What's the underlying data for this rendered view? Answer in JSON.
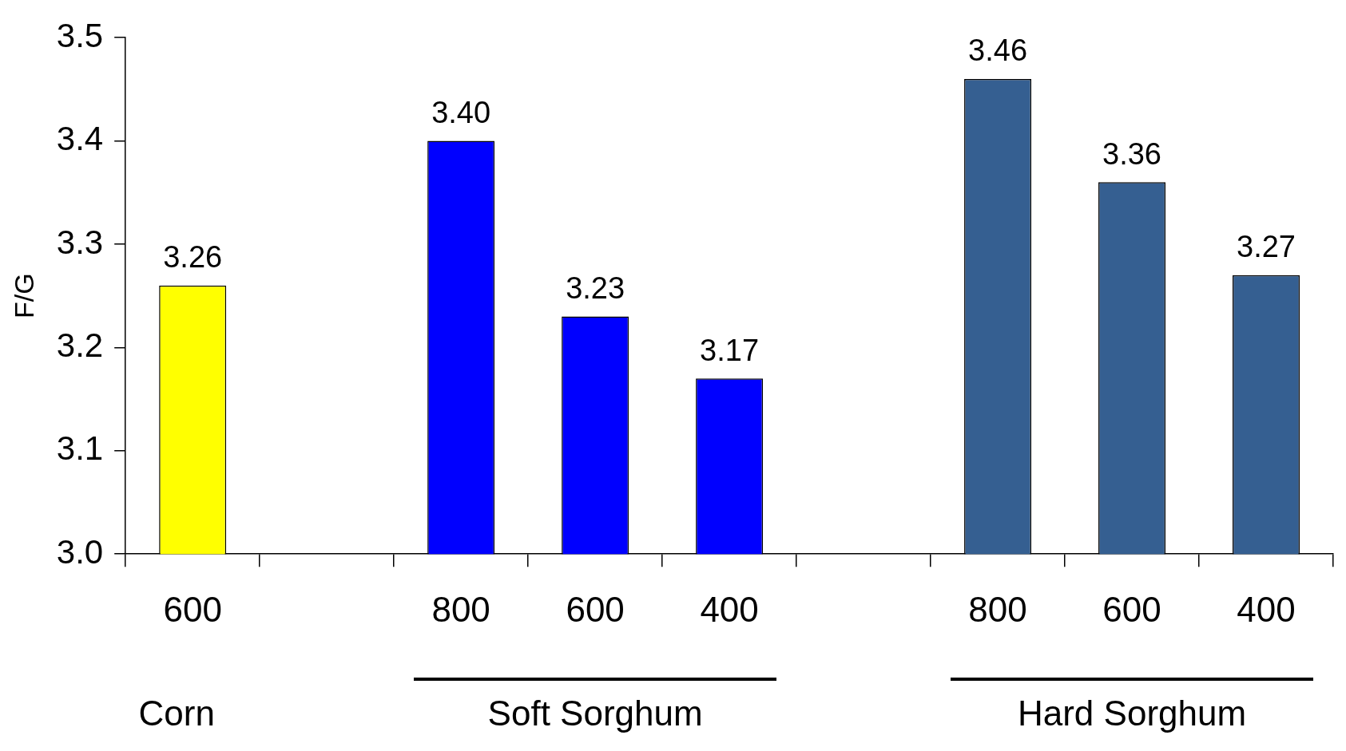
{
  "chart_data": {
    "type": "bar",
    "ylabel": "F/G",
    "categories": [
      "600",
      null,
      "800",
      "600",
      "400",
      null,
      "800",
      "600",
      "400"
    ],
    "values": [
      3.26,
      null,
      3.4,
      3.23,
      3.17,
      null,
      3.46,
      3.36,
      3.27
    ],
    "value_labels": [
      "3.26",
      null,
      "3.40",
      "3.23",
      "3.17",
      null,
      "3.46",
      "3.36",
      "3.27"
    ],
    "colors": [
      "#ffff00",
      "#ffffff",
      "#0000ff",
      "#0000ff",
      "#0000ff",
      "#ffffff",
      "#355f91",
      "#355f91",
      "#355f91"
    ],
    "ylim": [
      3.0,
      3.5
    ],
    "yticks": [
      {
        "value": 3.0,
        "label": "3.0"
      },
      3.1,
      3.2,
      3.3,
      3.4,
      3.5
    ],
    "annotations": [
      "Corn",
      "Soft Sorghum",
      "Hard Sorghum"
    ],
    "grid": false,
    "legend": false
  }
}
